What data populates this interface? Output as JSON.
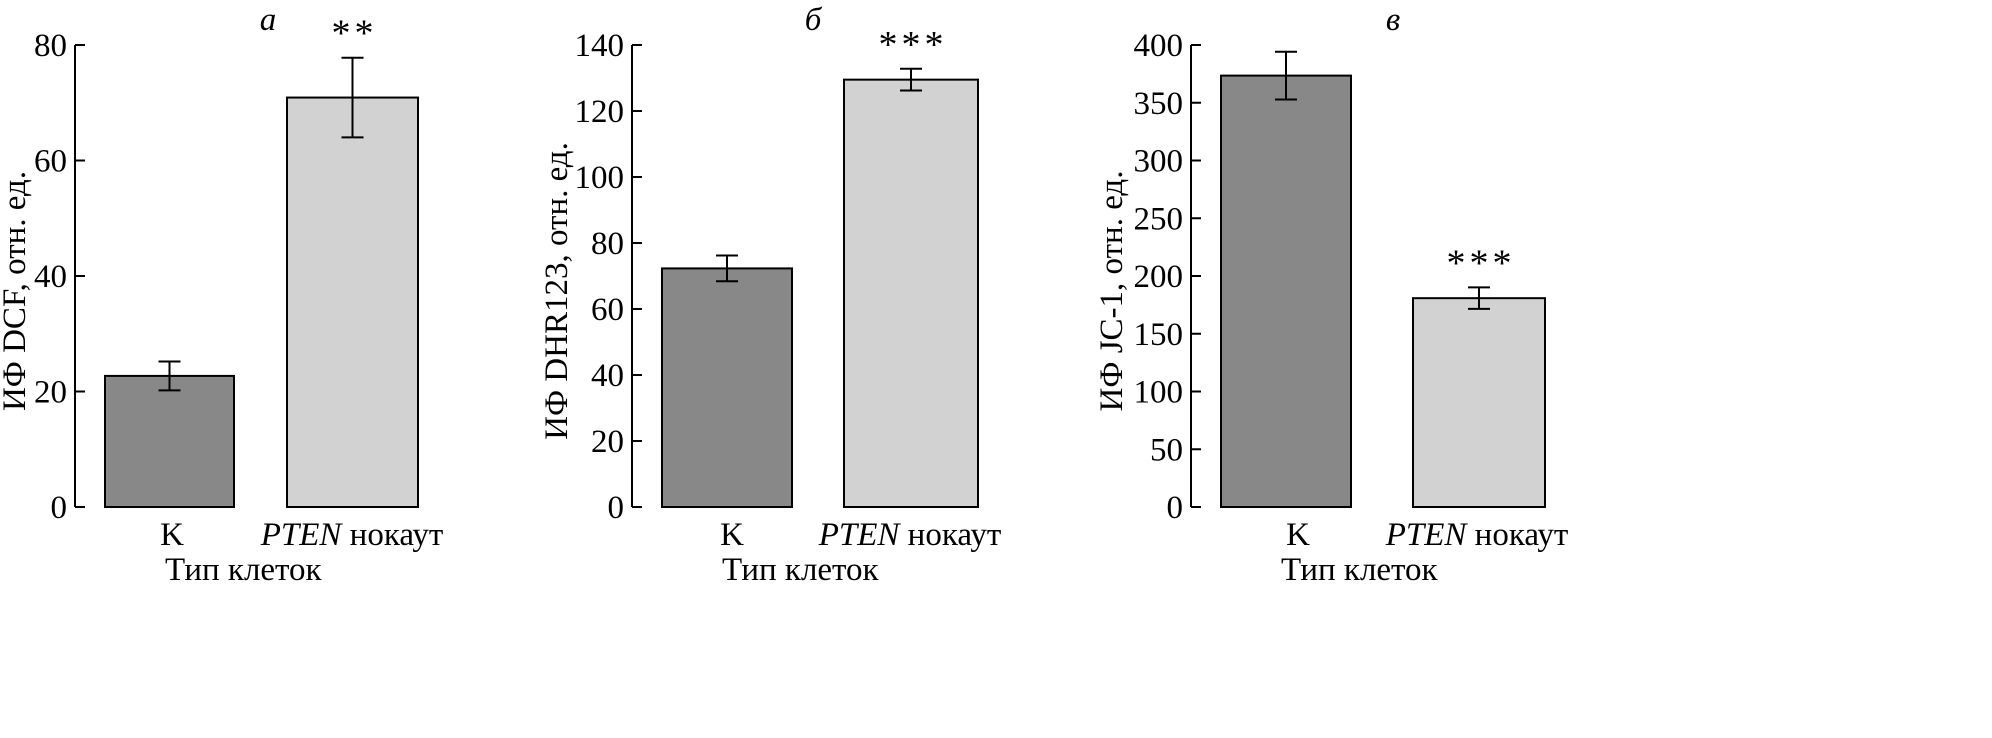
{
  "chart_data": [
    {
      "type": "bar",
      "panel": "а",
      "categories": [
        "K",
        "PTEN нокаут"
      ],
      "category_parts": [
        {
          "italic": "",
          "normal": "K"
        },
        {
          "italic": "PTEN",
          "normal": " нокаут"
        }
      ],
      "values": [
        22.7,
        70.9
      ],
      "errors": [
        2.5,
        6.9
      ],
      "bar_colors": [
        "#888888",
        "#d2d2d2"
      ],
      "significance": [
        "",
        "**"
      ],
      "ylabel": "ИФ DCF, отн. ед.",
      "xlabel": "Тип клеток",
      "ylim": [
        0,
        80
      ],
      "yticks": [
        0,
        20,
        40,
        60,
        80
      ],
      "grid": false
    },
    {
      "type": "bar",
      "panel": "б",
      "categories": [
        "K",
        "PTEN нокаут"
      ],
      "category_parts": [
        {
          "italic": "",
          "normal": "K"
        },
        {
          "italic": "PTEN",
          "normal": " нокаут"
        }
      ],
      "values": [
        72.3,
        129.5
      ],
      "errors": [
        3.9,
        3.3
      ],
      "bar_colors": [
        "#888888",
        "#d2d2d2"
      ],
      "significance": [
        "",
        "***"
      ],
      "ylabel": "ИФ DHR123, отн. ед.",
      "xlabel": "Тип клеток",
      "ylim": [
        0,
        140
      ],
      "yticks": [
        0,
        20,
        40,
        60,
        80,
        100,
        120,
        140
      ],
      "grid": false
    },
    {
      "type": "bar",
      "panel": "в",
      "categories": [
        "K",
        "PTEN нокаут"
      ],
      "category_parts": [
        {
          "italic": "",
          "normal": "K"
        },
        {
          "italic": "PTEN",
          "normal": " нокаут"
        }
      ],
      "values": [
        373.5,
        180.8
      ],
      "errors": [
        20.7,
        9.3
      ],
      "bar_colors": [
        "#888888",
        "#d2d2d2"
      ],
      "significance": [
        "",
        "***"
      ],
      "ylabel": "ИФ JC-1, отн. ед.",
      "xlabel": "Тип клеток",
      "ylim": [
        0,
        400
      ],
      "yticks": [
        0,
        50,
        100,
        150,
        200,
        250,
        300,
        350,
        400
      ],
      "grid": false
    }
  ]
}
